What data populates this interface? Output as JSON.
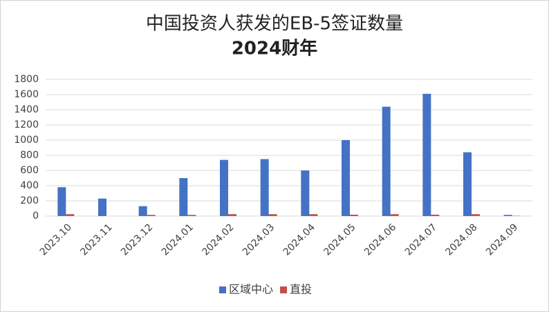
{
  "chart_data": {
    "type": "bar",
    "title": "中国投资人获发的EB-5签证数量",
    "subtitle": "2024财年",
    "categories": [
      "2023.10",
      "2023.11",
      "2023.12",
      "2024.01",
      "2024.02",
      "2024.03",
      "2024.04",
      "2024.05",
      "2024.06",
      "2024.07",
      "2024.08",
      "2024.09"
    ],
    "series": [
      {
        "name": "区域中心",
        "color": "#4472c4",
        "values": [
          380,
          230,
          130,
          500,
          740,
          750,
          600,
          1000,
          1440,
          1610,
          840,
          15
        ]
      },
      {
        "name": "直投",
        "color": "#c0504d",
        "values": [
          25,
          0,
          15,
          15,
          25,
          25,
          25,
          18,
          25,
          18,
          25,
          3
        ]
      }
    ],
    "ylim": [
      0,
      1800
    ],
    "yticks": [
      0,
      200,
      400,
      600,
      800,
      1000,
      1200,
      1400,
      1600,
      1800
    ],
    "grid": true,
    "legend": "bottom"
  }
}
